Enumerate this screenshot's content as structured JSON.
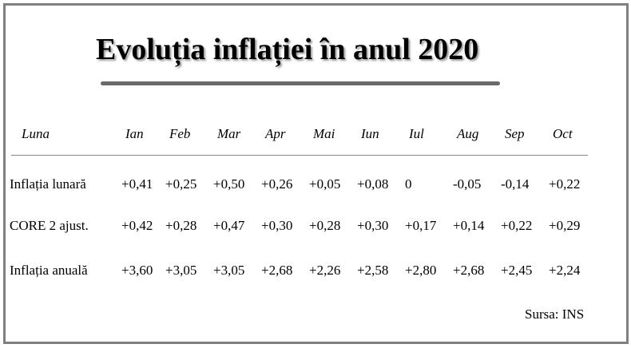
{
  "title": "Evoluția inflației în anul 2020",
  "source": "Sursa: INS",
  "chart_data": {
    "type": "table",
    "title": "Evoluția inflației în anul 2020",
    "header_label": "Luna",
    "columns": [
      "Ian",
      "Feb",
      "Mar",
      "Apr",
      "Mai",
      "Iun",
      "Iul",
      "Aug",
      "Sep",
      "Oct"
    ],
    "rows": [
      {
        "label": "Inflația lunară",
        "values": [
          "+0,41",
          "+0,25",
          "+0,50",
          "+0,26",
          "+0,05",
          "+0,08",
          "0",
          "-0,05",
          "-0,14",
          "+0,22"
        ]
      },
      {
        "label": "CORE 2 ajust.",
        "values": [
          "+0,42",
          "+0,28",
          "+0,47",
          "+0,30",
          "+0,28",
          "+0,30",
          "+0,17",
          "+0,14",
          "+0,22",
          "+0,29"
        ]
      },
      {
        "label": "Inflația anuală",
        "values": [
          "+3,60",
          "+3,05",
          "+3,05",
          "+2,68",
          "+2,26",
          "+2,58",
          "+2,80",
          "+2,68",
          "+2,45",
          "+2,24"
        ]
      }
    ]
  }
}
